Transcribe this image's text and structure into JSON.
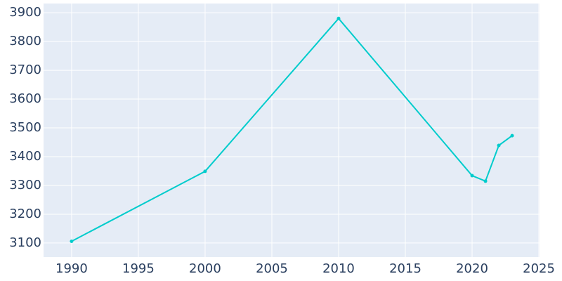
{
  "chart_data": {
    "type": "line",
    "x": [
      1990,
      2000,
      2010,
      2020,
      2021,
      2022,
      2023
    ],
    "series": [
      {
        "color": "#00cccc",
        "values": [
          3106,
          3349,
          3880,
          3334,
          3315,
          3439,
          3473
        ]
      }
    ],
    "xlim": [
      1987.9,
      2025.05
    ],
    "xticks": [
      1990,
      1995,
      2000,
      2005,
      2010,
      2015,
      2020,
      2025
    ],
    "ylim": [
      3051,
      3932
    ],
    "yticks": [
      3100,
      3200,
      3300,
      3400,
      3500,
      3600,
      3700,
      3800,
      3900
    ],
    "grid": true
  }
}
